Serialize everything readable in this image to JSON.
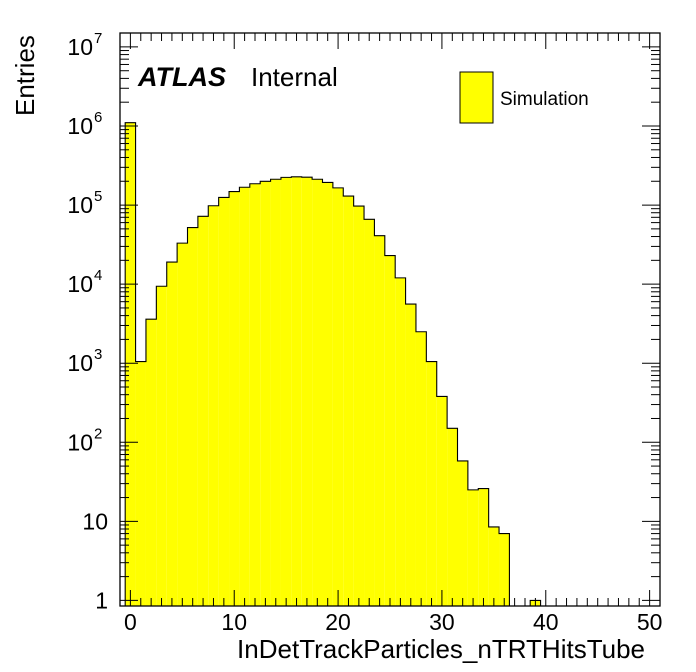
{
  "chart_data": {
    "type": "bar",
    "style": "histogram",
    "xlabel": "InDetTrackParticles_nTRTHitsTube",
    "ylabel": "Entries",
    "yscale": "log",
    "xlim": [
      -1,
      51
    ],
    "ylim": [
      0.85,
      15000000
    ],
    "x_ticks": [
      "0",
      "10",
      "20",
      "30",
      "40",
      "50"
    ],
    "y_ticks": [
      {
        "value": 1,
        "base": "1",
        "exp": ""
      },
      {
        "value": 10,
        "base": "10",
        "exp": ""
      },
      {
        "value": 100,
        "base": "10",
        "exp": "2"
      },
      {
        "value": 1000,
        "base": "10",
        "exp": "3"
      },
      {
        "value": 10000,
        "base": "10",
        "exp": "4"
      },
      {
        "value": 100000,
        "base": "10",
        "exp": "5"
      },
      {
        "value": 1000000,
        "base": "10",
        "exp": "6"
      },
      {
        "value": 10000000,
        "base": "10",
        "exp": "7"
      }
    ],
    "bin_width": 1,
    "bin_edges_start": -0.5,
    "series": [
      {
        "name": "Simulation",
        "color": "#ffff00",
        "edge_color": "#000000",
        "values": [
          1100000,
          1050,
          3600,
          9400,
          19000,
          33000,
          52000,
          72000,
          98000,
          125000,
          148000,
          168000,
          186000,
          200000,
          212000,
          224000,
          228000,
          225000,
          212000,
          193000,
          165000,
          130000,
          97000,
          66000,
          41000,
          23000,
          12000,
          5600,
          2500,
          1050,
          380,
          150,
          58,
          25,
          26,
          8.5,
          7,
          0,
          0,
          1,
          0,
          0,
          0,
          0,
          0,
          0,
          0,
          0,
          0,
          0,
          0
        ]
      }
    ],
    "legend": {
      "position": "top-right",
      "entries": [
        "Simulation"
      ]
    },
    "annotations": {
      "atlas": "ATLAS",
      "status": "Internal"
    }
  }
}
